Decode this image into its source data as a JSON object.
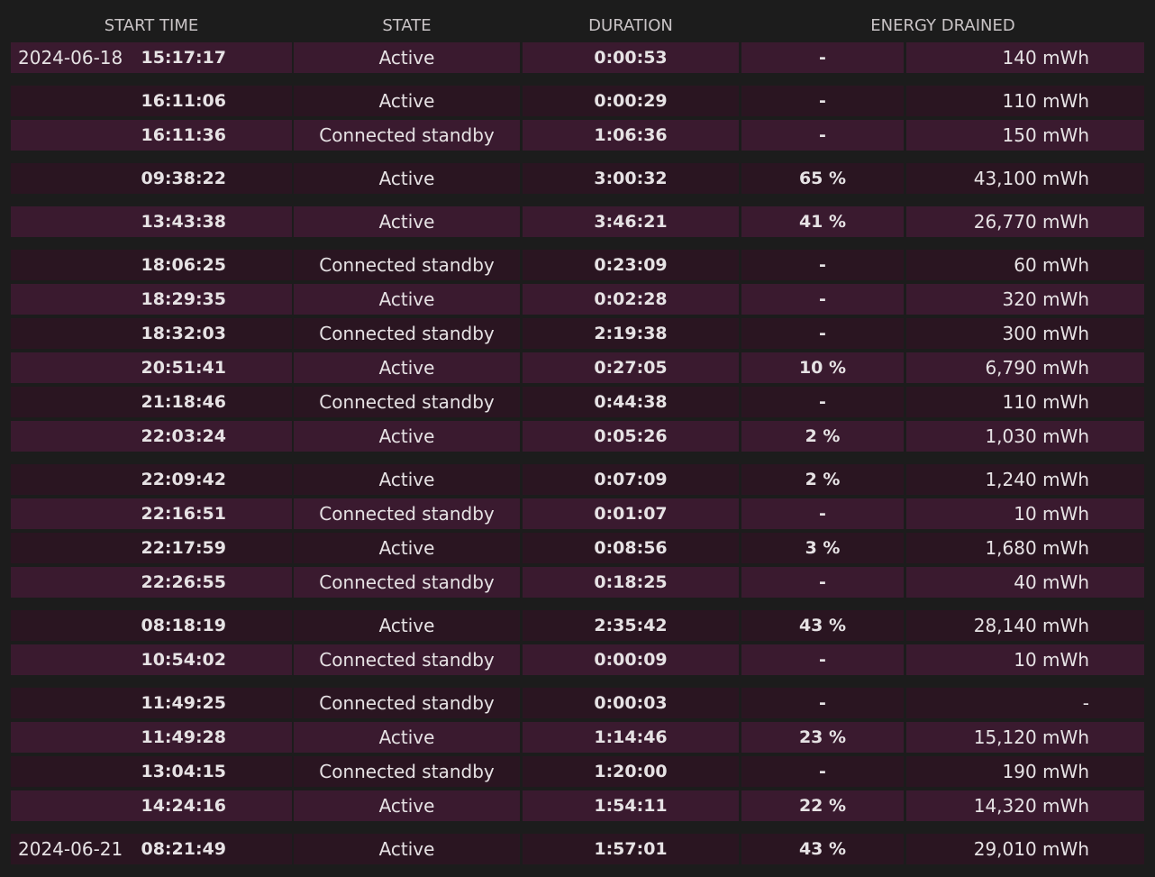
{
  "header": [
    "START TIME",
    "STATE",
    "DURATION",
    "ENERGY DRAINED"
  ],
  "groups": [
    [
      {
        "date": "2024-06-18",
        "time": "15:17:17",
        "state": "Active",
        "duration": "0:00:53",
        "percent": "-",
        "energy": "140 mWh"
      }
    ],
    [
      {
        "time": "16:11:06",
        "state": "Active",
        "duration": "0:00:29",
        "percent": "-",
        "energy": "110 mWh"
      },
      {
        "time": "16:11:36",
        "state": "Connected standby",
        "duration": "1:06:36",
        "percent": "-",
        "energy": "150 mWh"
      }
    ],
    [
      {
        "time": "09:38:22",
        "state": "Active",
        "duration": "3:00:32",
        "percent": "65 %",
        "energy": "43,100 mWh"
      }
    ],
    [
      {
        "time": "13:43:38",
        "state": "Active",
        "duration": "3:46:21",
        "percent": "41 %",
        "energy": "26,770 mWh"
      }
    ],
    [
      {
        "time": "18:06:25",
        "state": "Connected standby",
        "duration": "0:23:09",
        "percent": "-",
        "energy": "60 mWh"
      },
      {
        "time": "18:29:35",
        "state": "Active",
        "duration": "0:02:28",
        "percent": "-",
        "energy": "320 mWh"
      },
      {
        "time": "18:32:03",
        "state": "Connected standby",
        "duration": "2:19:38",
        "percent": "-",
        "energy": "300 mWh"
      },
      {
        "time": "20:51:41",
        "state": "Active",
        "duration": "0:27:05",
        "percent": "10 %",
        "energy": "6,790 mWh"
      },
      {
        "time": "21:18:46",
        "state": "Connected standby",
        "duration": "0:44:38",
        "percent": "-",
        "energy": "110 mWh"
      },
      {
        "time": "22:03:24",
        "state": "Active",
        "duration": "0:05:26",
        "percent": "2 %",
        "energy": "1,030 mWh"
      }
    ],
    [
      {
        "time": "22:09:42",
        "state": "Active",
        "duration": "0:07:09",
        "percent": "2 %",
        "energy": "1,240 mWh"
      },
      {
        "time": "22:16:51",
        "state": "Connected standby",
        "duration": "0:01:07",
        "percent": "-",
        "energy": "10 mWh"
      },
      {
        "time": "22:17:59",
        "state": "Active",
        "duration": "0:08:56",
        "percent": "3 %",
        "energy": "1,680 mWh"
      },
      {
        "time": "22:26:55",
        "state": "Connected standby",
        "duration": "0:18:25",
        "percent": "-",
        "energy": "40 mWh"
      }
    ],
    [
      {
        "time": "08:18:19",
        "state": "Active",
        "duration": "2:35:42",
        "percent": "43 %",
        "energy": "28,140 mWh"
      },
      {
        "time": "10:54:02",
        "state": "Connected standby",
        "duration": "0:00:09",
        "percent": "-",
        "energy": "10 mWh"
      }
    ],
    [
      {
        "time": "11:49:25",
        "state": "Connected standby",
        "duration": "0:00:03",
        "percent": "-",
        "energy": "-"
      },
      {
        "time": "11:49:28",
        "state": "Active",
        "duration": "1:14:46",
        "percent": "23 %",
        "energy": "15,120 mWh"
      },
      {
        "time": "13:04:15",
        "state": "Connected standby",
        "duration": "1:20:00",
        "percent": "-",
        "energy": "190 mWh"
      },
      {
        "time": "14:24:16",
        "state": "Active",
        "duration": "1:54:11",
        "percent": "22 %",
        "energy": "14,320 mWh"
      }
    ],
    [
      {
        "date": "2024-06-21",
        "time": "08:21:49",
        "state": "Active",
        "duration": "1:57:01",
        "percent": "43 %",
        "energy": "29,010 mWh"
      }
    ]
  ]
}
